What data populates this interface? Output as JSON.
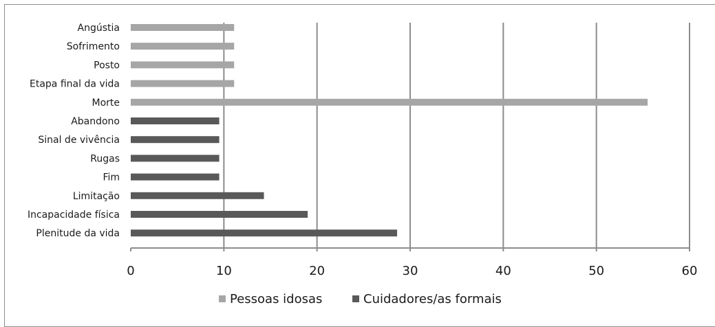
{
  "chart_data": {
    "type": "bar",
    "orientation": "horizontal",
    "categories": [
      "Angústia",
      "Sofrimento",
      "Posto",
      "Etapa final da vida",
      "Morte",
      "Abandono",
      "Sinal de vivência",
      "Rugas",
      "Fim",
      "Limitação",
      "Incapacidade física",
      "Plenitude da vida"
    ],
    "series": [
      {
        "name": "Pessoas idosas",
        "color": "#a6a6a6",
        "values": [
          11.1,
          11.1,
          11.1,
          11.1,
          55.5,
          null,
          null,
          null,
          null,
          null,
          null,
          null
        ]
      },
      {
        "name": "Cuidadores/as formais",
        "color": "#595959",
        "values": [
          null,
          null,
          null,
          null,
          null,
          9.5,
          9.5,
          9.5,
          9.5,
          14.3,
          19.0,
          28.6
        ]
      }
    ],
    "xlim": [
      0,
      60
    ],
    "xticks": [
      "0",
      "10",
      "20",
      "30",
      "40",
      "50",
      "60"
    ],
    "grid": "vertical",
    "legend_position": "bottom",
    "title": "",
    "xlabel": "",
    "ylabel": ""
  }
}
